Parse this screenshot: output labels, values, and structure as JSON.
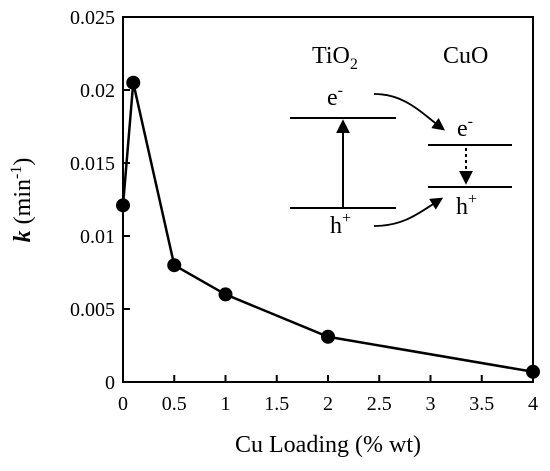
{
  "chart_data": {
    "type": "line",
    "x": [
      0,
      0.1,
      0.5,
      1,
      2,
      4
    ],
    "y": [
      0.0121,
      0.0205,
      0.008,
      0.006,
      0.0031,
      0.0007
    ],
    "xticks": [
      "0",
      "0.5",
      "1",
      "1.5",
      "2",
      "2.5",
      "3",
      "3.5",
      "4"
    ],
    "yticks": [
      "0",
      "0.005",
      "0.01",
      "0.015",
      "0.02",
      "0.025"
    ],
    "xlim": [
      0,
      4
    ],
    "ylim": [
      0,
      0.025
    ],
    "xlabel": "Cu Loading (% wt)",
    "ylabel": {
      "italic": "k",
      "normal": " (min",
      "sup": "-1",
      "end": ")"
    },
    "grid": false,
    "legend": "none",
    "color": "#000000",
    "inset": {
      "tio2": {
        "base": "TiO",
        "sub": "2"
      },
      "cuo": "CuO",
      "electron": {
        "base": "e",
        "sup": "-"
      },
      "hole": {
        "base": "h",
        "sup": "+"
      }
    }
  }
}
